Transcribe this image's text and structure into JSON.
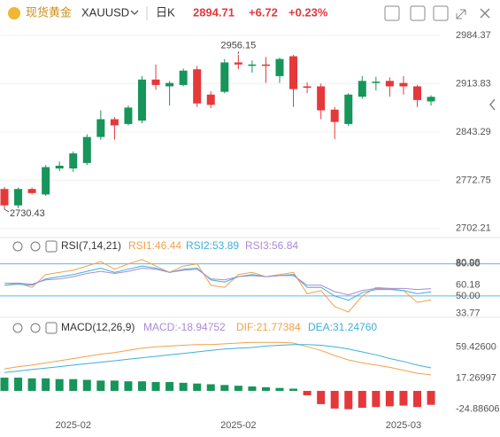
{
  "header": {
    "name": "现货黄金",
    "symbol": "XAUUSD",
    "period": "日K",
    "price": 2894.71,
    "change": "+6.72",
    "change_pct": "+0.23%"
  },
  "chart_data": [
    {
      "type": "candlestick",
      "up_color": "#17955a",
      "down_color": "#e5383b",
      "categories": [
        null,
        null,
        null,
        null,
        null,
        "2025-02",
        null,
        null,
        null,
        null,
        null,
        null,
        null,
        null,
        null,
        null,
        null,
        "2025-02",
        null,
        null,
        null,
        null,
        null,
        null,
        null,
        null,
        null,
        null,
        null,
        "2025-03",
        null,
        null
      ],
      "open": [
        2760,
        2736,
        2760,
        2752,
        2790,
        2790,
        2798,
        2836,
        2862,
        2855,
        2860,
        2920,
        2910,
        2912,
        2935,
        2898,
        2902,
        2945,
        2940,
        2942,
        2925,
        2954,
        2910,
        2910,
        2876,
        2855,
        2895,
        2915,
        2918,
        2915,
        2910,
        2888
      ],
      "high": [
        2763,
        2762,
        2762,
        2795,
        2800,
        2815,
        2840,
        2875,
        2865,
        2882,
        2925,
        2942,
        2918,
        2936,
        2940,
        2903,
        2950,
        2956.15,
        2948,
        2953,
        2952,
        2956,
        2916,
        2914,
        2880,
        2900,
        2925,
        2924,
        2923,
        2925,
        2912,
        2897
      ],
      "low": [
        2730.43,
        2732,
        2752,
        2750,
        2786,
        2785,
        2795,
        2832,
        2832,
        2853,
        2856,
        2905,
        2882,
        2910,
        2880,
        2878,
        2900,
        2935,
        2930,
        2915,
        2915,
        2880,
        2900,
        2862,
        2833,
        2852,
        2892,
        2904,
        2895,
        2898,
        2880,
        2882
      ],
      "close": [
        2736,
        2760,
        2754,
        2792,
        2794,
        2812,
        2836,
        2862,
        2853,
        2879,
        2920,
        2912,
        2915,
        2933,
        2885,
        2883,
        2945,
        2942,
        2942,
        2940,
        2950,
        2906,
        2908,
        2875,
        2858,
        2898,
        2918,
        2917,
        2910,
        2910,
        2890,
        2894.71
      ],
      "annotations": [
        2956.15,
        2730.43
      ],
      "ylim": [
        2689,
        3000
      ],
      "yticks": [
        2984.37,
        2913.83,
        2843.29,
        2772.75,
        2702.21
      ],
      "grid": true
    },
    {
      "type": "line",
      "title": "RSI(7,14,21)",
      "series": [
        {
          "name": "RSI1:46.44",
          "color": "#f0a24a",
          "values": [
            60,
            62,
            58,
            70,
            72,
            74,
            78,
            82,
            75,
            80,
            84,
            78,
            72,
            78,
            80,
            60,
            58,
            70,
            72,
            68,
            70,
            72,
            52,
            55,
            40,
            35,
            50,
            58,
            57,
            55,
            44,
            46.44
          ]
        },
        {
          "name": "RSI2:53.89",
          "color": "#3eb0d8",
          "values": [
            60,
            61,
            60,
            66,
            68,
            70,
            73,
            76,
            72,
            75,
            78,
            76,
            72,
            75,
            76,
            65,
            63,
            68,
            70,
            68,
            69,
            70,
            58,
            58,
            50,
            46,
            53,
            56,
            56,
            55,
            52,
            53.89
          ]
        },
        {
          "name": "RSI3:56.84",
          "color": "#a98ad6",
          "values": [
            62,
            62,
            61,
            65,
            66,
            68,
            71,
            73,
            71,
            73,
            76,
            75,
            72,
            74,
            75,
            66,
            65,
            68,
            69,
            68,
            69,
            69,
            60,
            60,
            54,
            51,
            55,
            57,
            57,
            57,
            56,
            56.84
          ]
        }
      ],
      "levels": [
        80,
        50
      ],
      "level_color": "#5bb8e8",
      "ylim": [
        30,
        88
      ],
      "yticks": [
        80.98,
        {
          "value": 80,
          "label": "80.00"
        },
        60.18,
        {
          "value": 50,
          "label": "50.00"
        },
        33.77
      ]
    },
    {
      "type": "macd",
      "title": "MACD(12,26,9)",
      "up_color": "#17955a",
      "down_color": "#e5383b",
      "series": [
        {
          "name": "MACD:-18.94752",
          "color": "#a98ad6",
          "values": [
            18,
            18,
            17,
            17,
            16,
            16,
            15,
            14,
            14,
            13,
            13,
            12,
            12,
            11,
            10,
            9,
            8,
            7,
            6,
            5,
            4,
            3,
            -6,
            -18,
            -24,
            -24.88606,
            -23,
            -22,
            -21,
            -20,
            -22,
            -18.94752
          ]
        },
        {
          "name": "DIF:21.77384",
          "color": "#f0a24a",
          "values": [
            30,
            33,
            35,
            38,
            41,
            44,
            47,
            50,
            52,
            55,
            58,
            60,
            61,
            62,
            63,
            63,
            64,
            65,
            66,
            66,
            66,
            65,
            60,
            55,
            48,
            42,
            38,
            35,
            32,
            28,
            24,
            21.77384
          ]
        },
        {
          "name": "DEA:31.24760",
          "color": "#3eb0d8",
          "values": [
            25,
            27,
            29,
            31,
            33,
            35,
            37,
            39,
            41,
            43,
            45,
            47,
            49,
            51,
            53,
            55,
            57,
            58,
            59,
            61,
            62,
            63,
            63,
            62,
            60,
            57,
            53,
            49,
            44,
            40,
            35,
            31.2476
          ]
        }
      ],
      "ylim": [
        -41,
        79.5
      ],
      "yticks": [
        {
          "value": 59.426,
          "label": "59.42600"
        },
        17.26997,
        -24.88606
      ]
    }
  ]
}
